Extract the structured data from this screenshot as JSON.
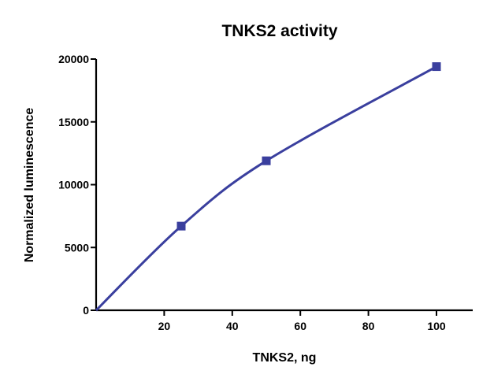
{
  "colors": {
    "series": "#3a3f9e",
    "axis": "#000000"
  },
  "chart_data": {
    "type": "line",
    "title": "TNKS2 activity",
    "xlabel": "TNKS2, ng",
    "ylabel": "Normalized luminescence",
    "xlim": [
      0,
      105
    ],
    "ylim": [
      0,
      20000
    ],
    "xticks": [
      20,
      40,
      60,
      80,
      100
    ],
    "yticks": [
      0,
      5000,
      10000,
      15000,
      20000
    ],
    "grid": false,
    "legend": "none",
    "series": [
      {
        "x": [
          0,
          25,
          50,
          100
        ],
        "y": [
          0,
          6700,
          11900,
          19400
        ],
        "marker": "square",
        "fit": "smooth-curve"
      }
    ]
  }
}
